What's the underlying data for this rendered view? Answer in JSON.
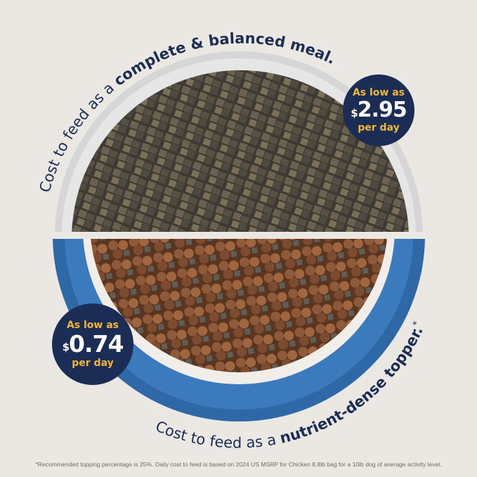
{
  "top_caption": {
    "prefix": "Cost to feed as a ",
    "emphasis": "complete & balanced meal."
  },
  "bottom_caption": {
    "prefix": "Cost to feed as a ",
    "emphasis": "nutrient-dense topper.",
    "mark": "*"
  },
  "top_badge": {
    "line1": "As low as",
    "currency": "$",
    "amount": "2.95",
    "line3": "per day"
  },
  "bottom_badge": {
    "line1": "As low as",
    "currency": "$",
    "amount": "0.74",
    "line3": "per day"
  },
  "footnote": "*Recommended topping percentage is 25%. Daily cost to feed is based on 2024 US MSRP for Chicken 8.8lb bag for a 10lb dog of average activity level.",
  "colors": {
    "background": "#ebe8e4",
    "navy": "#1b2c55",
    "gold": "#f2b73a",
    "bowl_blue": "#2f68a6",
    "bowl_grey": "#d6d6d6"
  }
}
